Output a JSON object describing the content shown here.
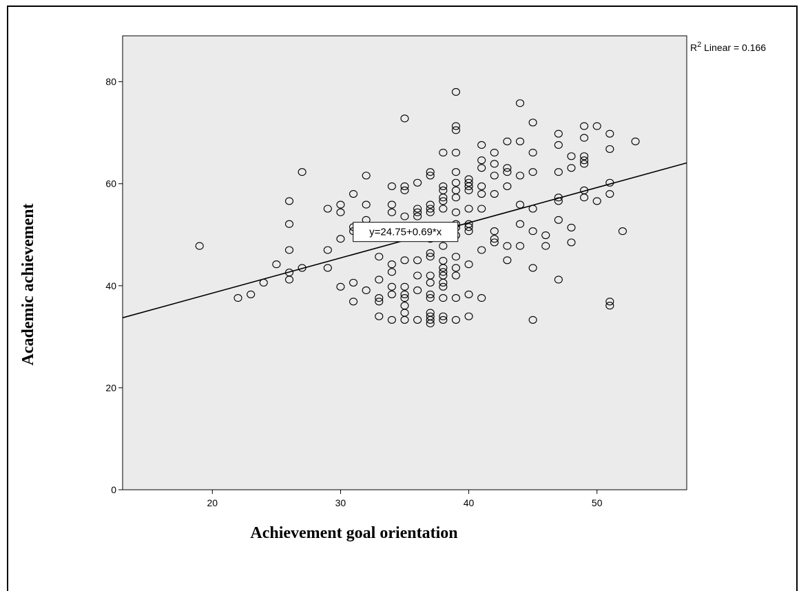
{
  "chart_data": {
    "type": "scatter",
    "xlabel": "Achievement goal orientation",
    "ylabel": "Academic achievement",
    "xlim": [
      13,
      57
    ],
    "ylim": [
      0,
      89
    ],
    "xticks": [
      20,
      30,
      40,
      50
    ],
    "yticks": [
      0,
      20,
      40,
      60,
      80
    ],
    "grid": false,
    "background": "#ebebeb",
    "marker_color": "#000000",
    "r2_label": "R² Linear = 0.166",
    "fit_line": {
      "intercept": 24.75,
      "slope": 0.69,
      "label": "y=24.75+0.69*x"
    },
    "points": [
      [
        19,
        47.8
      ],
      [
        22,
        37.6
      ],
      [
        23,
        38.3
      ],
      [
        24,
        40.6
      ],
      [
        25,
        44.2
      ],
      [
        26,
        56.6
      ],
      [
        26,
        52.1
      ],
      [
        26,
        47.0
      ],
      [
        26,
        42.6
      ],
      [
        26,
        41.2
      ],
      [
        27,
        62.3
      ],
      [
        27,
        43.5
      ],
      [
        29,
        55.1
      ],
      [
        29,
        47.0
      ],
      [
        29,
        43.5
      ],
      [
        30,
        55.9
      ],
      [
        30,
        54.4
      ],
      [
        30,
        49.2
      ],
      [
        30,
        39.8
      ],
      [
        31,
        58.0
      ],
      [
        31,
        51.5
      ],
      [
        31,
        50.7
      ],
      [
        31,
        40.6
      ],
      [
        31,
        36.9
      ],
      [
        32,
        61.6
      ],
      [
        32,
        55.9
      ],
      [
        32,
        52.9
      ],
      [
        32,
        39.1
      ],
      [
        33,
        45.7
      ],
      [
        33,
        41.2
      ],
      [
        33,
        37.6
      ],
      [
        33,
        36.9
      ],
      [
        33,
        34.0
      ],
      [
        34,
        59.5
      ],
      [
        34,
        55.9
      ],
      [
        34,
        54.4
      ],
      [
        34,
        44.2
      ],
      [
        34,
        42.7
      ],
      [
        34,
        39.8
      ],
      [
        34,
        38.3
      ],
      [
        34,
        33.3
      ],
      [
        35,
        72.8
      ],
      [
        35,
        59.5
      ],
      [
        35,
        58.7
      ],
      [
        35,
        53.6
      ],
      [
        35,
        45.0
      ],
      [
        35,
        39.8
      ],
      [
        35,
        38.3
      ],
      [
        35,
        37.6
      ],
      [
        35,
        36.1
      ],
      [
        35,
        34.7
      ],
      [
        35,
        33.3
      ],
      [
        36,
        60.2
      ],
      [
        36,
        55.1
      ],
      [
        36,
        54.4
      ],
      [
        36,
        53.6
      ],
      [
        36,
        51.5
      ],
      [
        36,
        45.0
      ],
      [
        36,
        42.0
      ],
      [
        36,
        39.1
      ],
      [
        36,
        33.3
      ],
      [
        37,
        62.3
      ],
      [
        37,
        61.6
      ],
      [
        37,
        55.9
      ],
      [
        37,
        55.1
      ],
      [
        37,
        54.4
      ],
      [
        37,
        51.5
      ],
      [
        37,
        49.2
      ],
      [
        37,
        46.4
      ],
      [
        37,
        45.7
      ],
      [
        37,
        42.0
      ],
      [
        37,
        40.6
      ],
      [
        37,
        38.3
      ],
      [
        37,
        37.6
      ],
      [
        37,
        34.7
      ],
      [
        37,
        34.0
      ],
      [
        37,
        33.3
      ],
      [
        37,
        32.6
      ],
      [
        38,
        66.1
      ],
      [
        38,
        59.5
      ],
      [
        38,
        58.7
      ],
      [
        38,
        57.3
      ],
      [
        38,
        56.6
      ],
      [
        38,
        55.1
      ],
      [
        38,
        47.8
      ],
      [
        38,
        44.9
      ],
      [
        38,
        43.5
      ],
      [
        38,
        42.7
      ],
      [
        38,
        42.0
      ],
      [
        38,
        40.6
      ],
      [
        38,
        39.8
      ],
      [
        38,
        37.6
      ],
      [
        38,
        34.0
      ],
      [
        38,
        33.3
      ],
      [
        39,
        78.0
      ],
      [
        39,
        71.3
      ],
      [
        39,
        70.5
      ],
      [
        39,
        66.1
      ],
      [
        39,
        62.3
      ],
      [
        39,
        60.2
      ],
      [
        39,
        58.7
      ],
      [
        39,
        57.3
      ],
      [
        39,
        54.4
      ],
      [
        39,
        52.1
      ],
      [
        39,
        51.4
      ],
      [
        39,
        49.9
      ],
      [
        39,
        45.7
      ],
      [
        39,
        43.5
      ],
      [
        39,
        42.0
      ],
      [
        39,
        37.6
      ],
      [
        39,
        33.3
      ],
      [
        40,
        60.9
      ],
      [
        40,
        60.2
      ],
      [
        40,
        59.5
      ],
      [
        40,
        58.7
      ],
      [
        40,
        55.1
      ],
      [
        40,
        52.1
      ],
      [
        40,
        51.5
      ],
      [
        40,
        50.7
      ],
      [
        40,
        44.2
      ],
      [
        40,
        38.3
      ],
      [
        40,
        34.0
      ],
      [
        41,
        67.6
      ],
      [
        41,
        64.6
      ],
      [
        41,
        63.1
      ],
      [
        41,
        59.5
      ],
      [
        41,
        58.0
      ],
      [
        41,
        55.1
      ],
      [
        41,
        47.0
      ],
      [
        41,
        37.6
      ],
      [
        42,
        66.1
      ],
      [
        42,
        63.9
      ],
      [
        42,
        61.6
      ],
      [
        42,
        58.0
      ],
      [
        42,
        50.7
      ],
      [
        42,
        49.2
      ],
      [
        42,
        48.5
      ],
      [
        43,
        68.3
      ],
      [
        43,
        63.1
      ],
      [
        43,
        62.3
      ],
      [
        43,
        59.5
      ],
      [
        43,
        47.8
      ],
      [
        43,
        45.0
      ],
      [
        44,
        75.8
      ],
      [
        44,
        68.3
      ],
      [
        44,
        61.6
      ],
      [
        44,
        55.9
      ],
      [
        44,
        52.1
      ],
      [
        44,
        47.8
      ],
      [
        45,
        72.0
      ],
      [
        45,
        66.1
      ],
      [
        45,
        62.3
      ],
      [
        45,
        55.1
      ],
      [
        45,
        50.7
      ],
      [
        45,
        43.5
      ],
      [
        45,
        33.3
      ],
      [
        46,
        49.9
      ],
      [
        46,
        47.8
      ],
      [
        47,
        69.8
      ],
      [
        47,
        67.6
      ],
      [
        47,
        62.3
      ],
      [
        47,
        57.3
      ],
      [
        47,
        56.6
      ],
      [
        47,
        52.9
      ],
      [
        47,
        41.2
      ],
      [
        48,
        65.4
      ],
      [
        48,
        63.1
      ],
      [
        48,
        51.4
      ],
      [
        48,
        48.5
      ],
      [
        49,
        71.3
      ],
      [
        49,
        69.0
      ],
      [
        49,
        65.4
      ],
      [
        49,
        64.6
      ],
      [
        49,
        63.9
      ],
      [
        49,
        58.7
      ],
      [
        49,
        57.3
      ],
      [
        50,
        71.3
      ],
      [
        50,
        56.6
      ],
      [
        51,
        69.8
      ],
      [
        51,
        66.8
      ],
      [
        51,
        60.2
      ],
      [
        51,
        58.0
      ],
      [
        51,
        36.9
      ],
      [
        51,
        36.1
      ],
      [
        52,
        50.7
      ],
      [
        53,
        68.3
      ]
    ]
  }
}
